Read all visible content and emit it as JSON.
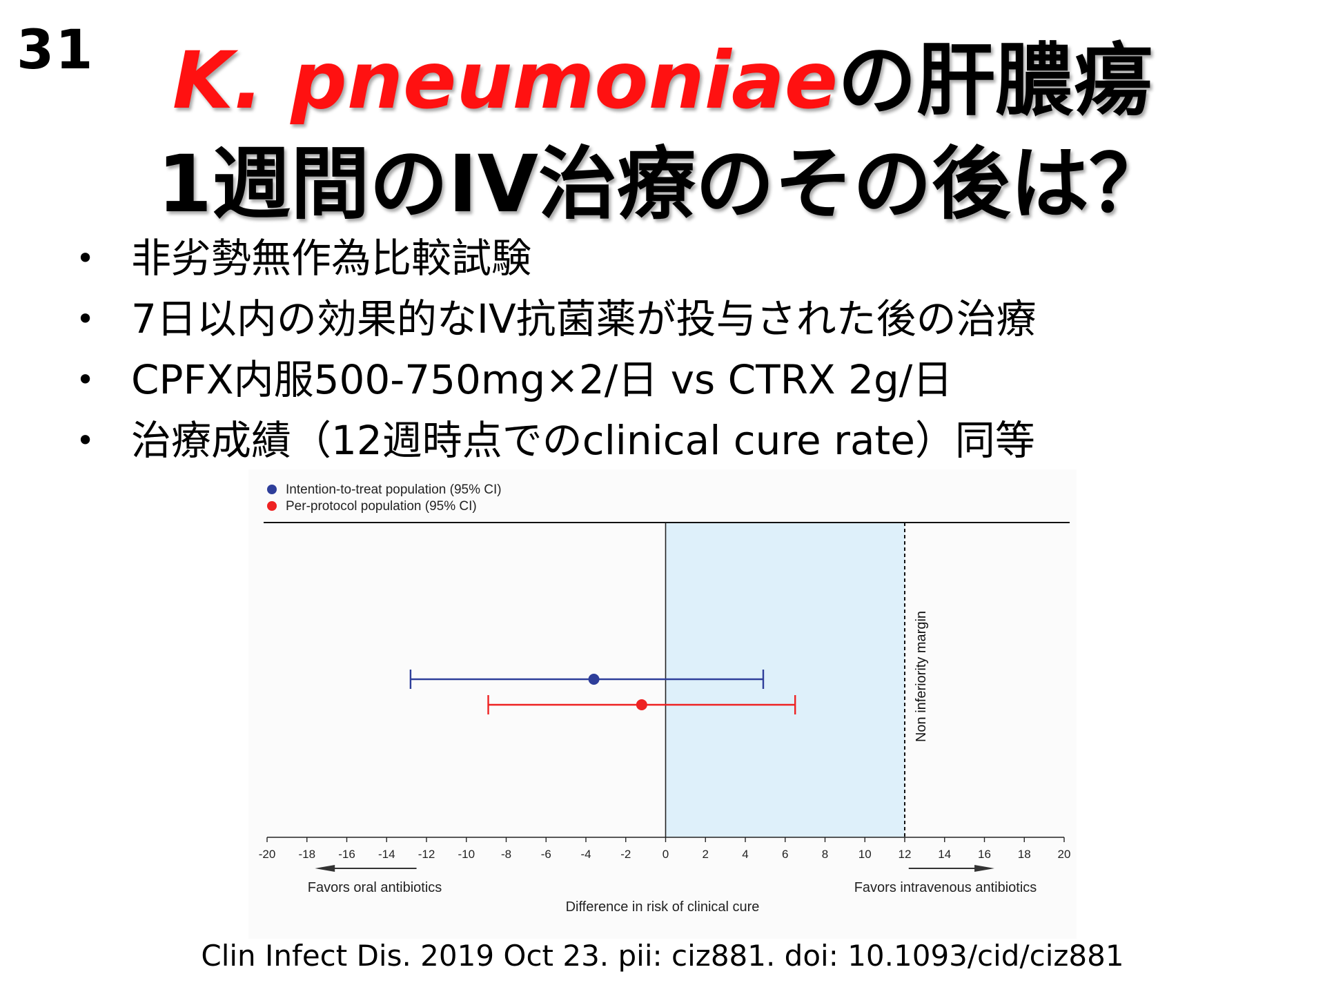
{
  "slide_number": "31",
  "title": {
    "line1_red": "K. pneumoniae",
    "line1_black": "の肝膿瘍",
    "line2": "1週間のIV治療のその後は？"
  },
  "bullets": [
    "非劣勢無作為比較試験",
    "7日以内の効果的なIV抗菌薬が投与された後の治療",
    "CPFX内服500-750mg×2/日 vs CTRX 2g/日",
    "治療成績（12週時点でのclinical cure rate）同等"
  ],
  "citation": "Clin Infect Dis. 2019 Oct 23. pii: ciz881. doi: 10.1093/cid/ciz881",
  "colors": {
    "title_red": "#ff1111",
    "itt": "#2e3e9a",
    "pp": "#ee2222",
    "shade": "#def0fa"
  },
  "chart_data": {
    "type": "scatter",
    "xlabel": "Difference in risk of clinical cure",
    "xlim": [
      -20,
      20
    ],
    "xticks": [
      -20,
      -18,
      -16,
      -14,
      -12,
      -10,
      -8,
      -6,
      -4,
      -2,
      0,
      2,
      4,
      6,
      8,
      10,
      12,
      14,
      16,
      18,
      20
    ],
    "non_inferiority_margin": 12,
    "margin_label": "Non inferiority margin",
    "favors_left": "Favors oral antibiotics",
    "favors_right": "Favors intravenous antibiotics",
    "legend_position": "top-left",
    "series": [
      {
        "name": "Intention-to-treat population (95% CI)",
        "point": -3.6,
        "ci": [
          -12.8,
          4.9
        ],
        "color": "#2e3e9a"
      },
      {
        "name": "Per-protocol population (95% CI)",
        "point": -1.2,
        "ci": [
          -8.9,
          6.5
        ],
        "color": "#ee2222"
      }
    ]
  }
}
